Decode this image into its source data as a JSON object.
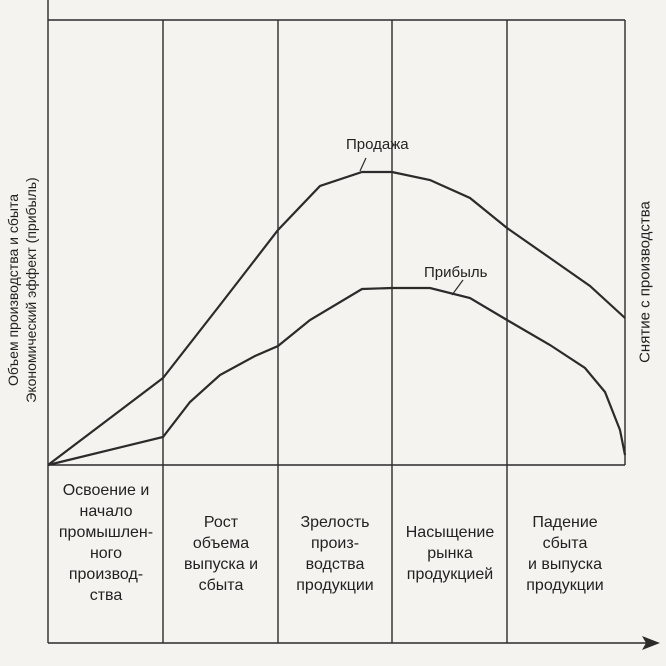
{
  "stages": [
    {
      "label": "Освоение и\nначало\nпромышлен-\nного\nпроизвод-\nства"
    },
    {
      "label": "Рост\nобъема\nвыпуска и\nсбыта"
    },
    {
      "label": "Зрелость\nпроиз-\nводства\nпродукции"
    },
    {
      "label": "Насыщение\nрынка\nпродукцией"
    },
    {
      "label": "Падение\nсбыта\nи выпуска\nпродукции"
    }
  ],
  "curves": {
    "sales_label": "Продажа",
    "profit_label": "Прибыль"
  },
  "axes": {
    "y_line1": "Объем производства и сбыта",
    "y_line2": "Экономический эффект (прибыль)"
  },
  "side_note": "Снятие с производства",
  "colors": {
    "line": "#2b2b2b",
    "background": "#f4f3f0"
  }
}
